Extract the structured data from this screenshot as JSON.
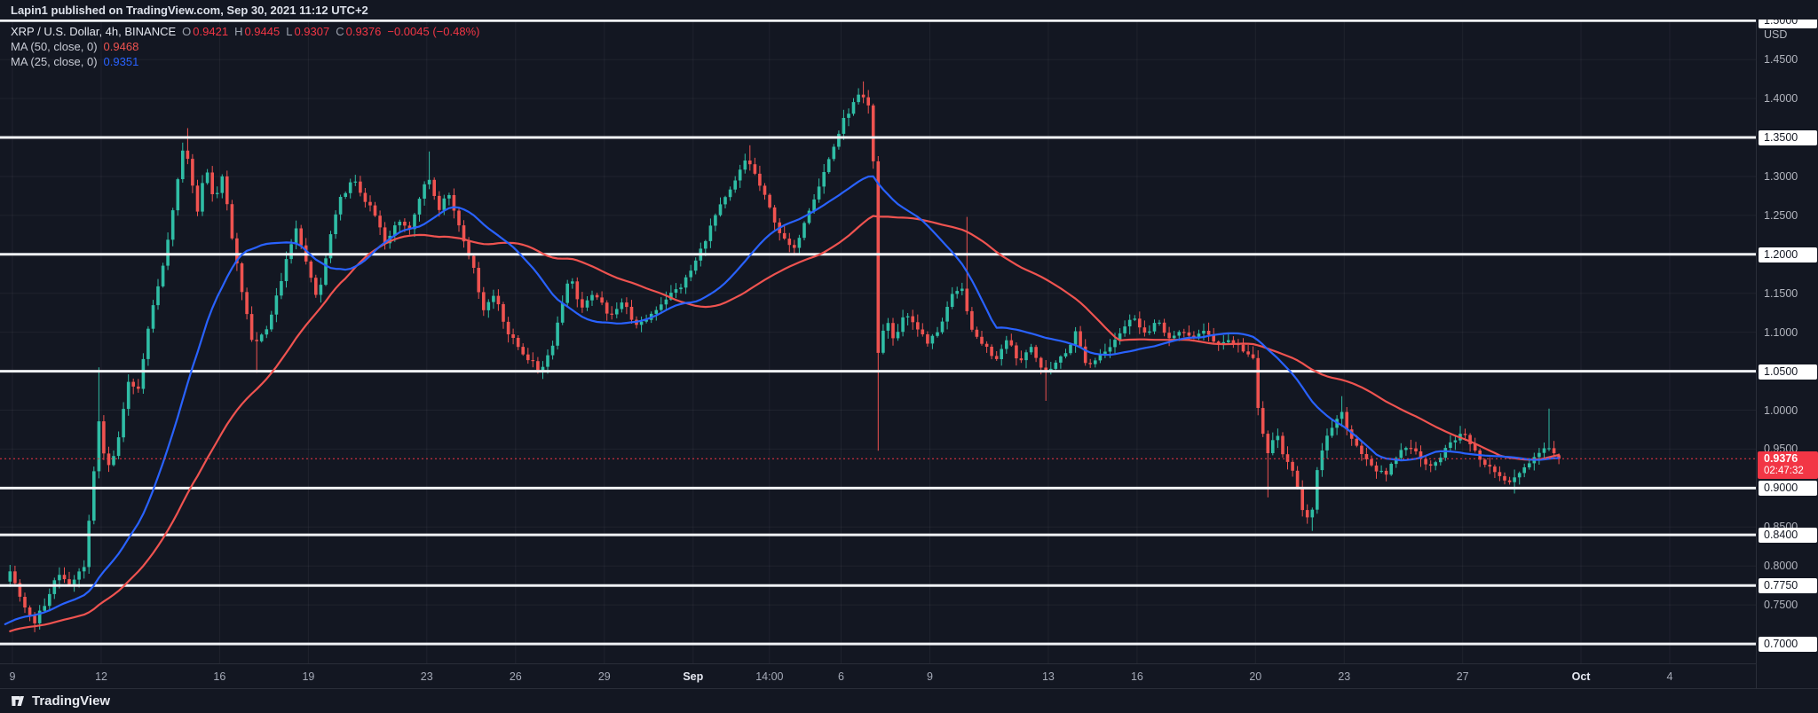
{
  "header": {
    "publisher": "Lapin1 published on TradingView.com, Sep 30, 2021 11:12 UTC+2"
  },
  "legend": {
    "symbol": "XRP / U.S. Dollar, 4h, BINANCE",
    "ohlc": [
      {
        "k": "O",
        "v": "0.9421"
      },
      {
        "k": "H",
        "v": "0.9445"
      },
      {
        "k": "L",
        "v": "0.9307"
      },
      {
        "k": "C",
        "v": "0.9376"
      }
    ],
    "change": "−0.0045 (−0.48%)"
  },
  "footer": {
    "brand": "TradingView"
  },
  "theme": {
    "bg": "#131722",
    "up": "#2fbda5",
    "down": "#ef5350",
    "accent": "#f23645",
    "grid": "rgba(255,255,255,0.05)",
    "level_line": "#f0f2f5",
    "axis_text": "#b2b5be"
  },
  "chart_data": {
    "type": "candlestick",
    "symbol": "XRP / U.S. Dollar",
    "interval": "4h",
    "exchange": "BINANCE",
    "last": {
      "open": 0.9421,
      "high": 0.9445,
      "low": 0.9307,
      "close": 0.9376,
      "change": -0.0045,
      "change_pct": -0.48
    },
    "badge": {
      "price_label": "0.9376",
      "countdown": "02:47:32"
    },
    "ma": [
      {
        "label": "MA (50, close, 0)",
        "period": 50,
        "value": "0.9468",
        "color": "#ef5350"
      },
      {
        "label": "MA (25, close, 0)",
        "period": 25,
        "value": "0.9351",
        "color": "#2962ff"
      }
    ],
    "support_lines": [
      1.5,
      1.35,
      1.2,
      1.05,
      0.9,
      0.84,
      0.775,
      0.7
    ],
    "y_axis": {
      "min": 0.675,
      "max": 1.5,
      "unit": "USD",
      "ticks": [
        {
          "label": "1.5000",
          "price": 1.5,
          "hl": true
        },
        {
          "label": "1.4500",
          "price": 1.45
        },
        {
          "label": "1.4000",
          "price": 1.4
        },
        {
          "label": "1.3500",
          "price": 1.35,
          "hl": true
        },
        {
          "label": "1.3000",
          "price": 1.3
        },
        {
          "label": "1.2500",
          "price": 1.25
        },
        {
          "label": "1.2000",
          "price": 1.2,
          "hl": true
        },
        {
          "label": "1.1500",
          "price": 1.15
        },
        {
          "label": "1.1000",
          "price": 1.1
        },
        {
          "label": "1.0500",
          "price": 1.05,
          "hl": true
        },
        {
          "label": "1.0000",
          "price": 1.0
        },
        {
          "label": "0.9500",
          "price": 0.95
        },
        {
          "label": "0.9000",
          "price": 0.9,
          "hl": true
        },
        {
          "label": "0.8500",
          "price": 0.85
        },
        {
          "label": "0.8400",
          "price": 0.84,
          "hl": true
        },
        {
          "label": "0.8000",
          "price": 0.8
        },
        {
          "label": "0.7750",
          "price": 0.775,
          "hl": true
        },
        {
          "label": "0.7500",
          "price": 0.75
        },
        {
          "label": "0.7000",
          "price": 0.7,
          "hl": true
        }
      ]
    },
    "x_axis": {
      "labels": [
        {
          "text": "9",
          "day": 0
        },
        {
          "text": "12",
          "day": 3
        },
        {
          "text": "16",
          "day": 7
        },
        {
          "text": "19",
          "day": 10
        },
        {
          "text": "23",
          "day": 14
        },
        {
          "text": "26",
          "day": 17
        },
        {
          "text": "29",
          "day": 20
        },
        {
          "text": "Sep",
          "day": 23,
          "major": true
        },
        {
          "text": "14:00",
          "day": 25.58
        },
        {
          "text": "6",
          "day": 28
        },
        {
          "text": "9",
          "day": 31
        },
        {
          "text": "13",
          "day": 35
        },
        {
          "text": "16",
          "day": 38
        },
        {
          "text": "20",
          "day": 42
        },
        {
          "text": "23",
          "day": 45
        },
        {
          "text": "27",
          "day": 49
        },
        {
          "text": "Oct",
          "day": 53,
          "major": true
        },
        {
          "text": "4",
          "day": 56
        }
      ]
    },
    "candles_per_day": 6,
    "range_days": [
      -0.3,
      58.8
    ],
    "price_path": [
      [
        -8.33,
        0.68
      ],
      [
        -5,
        0.72
      ],
      [
        -3,
        0.7
      ],
      [
        -1.5,
        0.73
      ],
      [
        -0.6,
        0.755
      ],
      [
        0,
        0.79
      ],
      [
        0.4,
        0.755
      ],
      [
        0.8,
        0.727
      ],
      [
        1.2,
        0.752
      ],
      [
        1.6,
        0.79
      ],
      [
        2.1,
        0.775
      ],
      [
        2.5,
        0.8
      ],
      [
        2.8,
        0.9
      ],
      [
        2.95,
        1.0
      ],
      [
        3.1,
        0.95
      ],
      [
        3.4,
        0.925
      ],
      [
        3.7,
        0.97
      ],
      [
        4.0,
        1.04
      ],
      [
        4.3,
        1.02
      ],
      [
        4.6,
        1.09
      ],
      [
        5.0,
        1.16
      ],
      [
        5.3,
        1.21
      ],
      [
        5.6,
        1.28
      ],
      [
        5.9,
        1.345
      ],
      [
        6.1,
        1.3
      ],
      [
        6.35,
        1.255
      ],
      [
        6.6,
        1.315
      ],
      [
        6.9,
        1.27
      ],
      [
        7.2,
        1.3
      ],
      [
        7.5,
        1.22
      ],
      [
        7.9,
        1.14
      ],
      [
        8.2,
        1.085
      ],
      [
        8.6,
        1.1
      ],
      [
        8.9,
        1.13
      ],
      [
        9.4,
        1.2
      ],
      [
        9.7,
        1.235
      ],
      [
        10.1,
        1.175
      ],
      [
        10.4,
        1.14
      ],
      [
        10.8,
        1.22
      ],
      [
        11.2,
        1.275
      ],
      [
        11.6,
        1.295
      ],
      [
        12.0,
        1.27
      ],
      [
        12.4,
        1.245
      ],
      [
        12.7,
        1.21
      ],
      [
        13.1,
        1.245
      ],
      [
        13.5,
        1.235
      ],
      [
        13.9,
        1.275
      ],
      [
        14.1,
        1.305
      ],
      [
        14.5,
        1.26
      ],
      [
        14.8,
        1.28
      ],
      [
        15.2,
        1.235
      ],
      [
        15.6,
        1.19
      ],
      [
        16.0,
        1.13
      ],
      [
        16.4,
        1.15
      ],
      [
        16.8,
        1.1
      ],
      [
        17.3,
        1.075
      ],
      [
        17.9,
        1.05
      ],
      [
        18.3,
        1.08
      ],
      [
        18.9,
        1.175
      ],
      [
        19.3,
        1.13
      ],
      [
        19.8,
        1.15
      ],
      [
        20.2,
        1.12
      ],
      [
        20.7,
        1.14
      ],
      [
        21.2,
        1.105
      ],
      [
        21.7,
        1.125
      ],
      [
        22.2,
        1.145
      ],
      [
        22.7,
        1.16
      ],
      [
        23.1,
        1.185
      ],
      [
        23.5,
        1.22
      ],
      [
        23.9,
        1.255
      ],
      [
        24.4,
        1.285
      ],
      [
        24.9,
        1.325
      ],
      [
        25.2,
        1.3
      ],
      [
        25.6,
        1.265
      ],
      [
        26.1,
        1.22
      ],
      [
        26.5,
        1.205
      ],
      [
        26.9,
        1.25
      ],
      [
        27.3,
        1.285
      ],
      [
        27.7,
        1.325
      ],
      [
        28.2,
        1.375
      ],
      [
        28.7,
        1.405
      ],
      [
        29.0,
        1.39
      ],
      [
        29.15,
        1.35
      ],
      [
        29.32,
        1.07
      ],
      [
        29.6,
        1.12
      ],
      [
        29.9,
        1.085
      ],
      [
        30.2,
        1.125
      ],
      [
        30.6,
        1.11
      ],
      [
        31.0,
        1.085
      ],
      [
        31.4,
        1.105
      ],
      [
        31.8,
        1.145
      ],
      [
        32.2,
        1.155
      ],
      [
        32.5,
        1.1
      ],
      [
        32.9,
        1.085
      ],
      [
        33.3,
        1.065
      ],
      [
        33.7,
        1.095
      ],
      [
        34.1,
        1.06
      ],
      [
        34.5,
        1.085
      ],
      [
        34.9,
        1.045
      ],
      [
        35.3,
        1.06
      ],
      [
        35.7,
        1.075
      ],
      [
        36.0,
        1.1
      ],
      [
        36.4,
        1.055
      ],
      [
        36.8,
        1.07
      ],
      [
        37.2,
        1.085
      ],
      [
        37.6,
        1.105
      ],
      [
        38.0,
        1.12
      ],
      [
        38.4,
        1.095
      ],
      [
        38.8,
        1.115
      ],
      [
        39.2,
        1.09
      ],
      [
        39.6,
        1.1
      ],
      [
        40.0,
        1.095
      ],
      [
        40.4,
        1.1
      ],
      [
        40.8,
        1.085
      ],
      [
        41.2,
        1.09
      ],
      [
        41.6,
        1.08
      ],
      [
        42.0,
        1.065
      ],
      [
        42.2,
        0.99
      ],
      [
        42.5,
        0.945
      ],
      [
        42.8,
        0.97
      ],
      [
        43.1,
        0.935
      ],
      [
        43.4,
        0.915
      ],
      [
        43.7,
        0.87
      ],
      [
        43.95,
        0.86
      ],
      [
        44.2,
        0.93
      ],
      [
        44.6,
        0.975
      ],
      [
        45.0,
        0.995
      ],
      [
        45.3,
        0.965
      ],
      [
        45.7,
        0.945
      ],
      [
        46.1,
        0.925
      ],
      [
        46.5,
        0.915
      ],
      [
        46.9,
        0.945
      ],
      [
        47.3,
        0.955
      ],
      [
        47.7,
        0.935
      ],
      [
        48.1,
        0.93
      ],
      [
        48.5,
        0.95
      ],
      [
        48.9,
        0.965
      ],
      [
        49.2,
        0.97
      ],
      [
        49.5,
        0.945
      ],
      [
        49.9,
        0.93
      ],
      [
        50.3,
        0.915
      ],
      [
        50.7,
        0.905
      ],
      [
        51.1,
        0.925
      ],
      [
        51.5,
        0.94
      ],
      [
        51.9,
        0.955
      ],
      [
        52.1,
        0.945
      ],
      [
        52.33,
        0.9376
      ]
    ],
    "wick_events": [
      {
        "day": 0.8,
        "low": 0.715
      },
      {
        "day": 2.95,
        "high": 1.055
      },
      {
        "day": 5.9,
        "high": 1.362
      },
      {
        "day": 8.2,
        "low": 1.048
      },
      {
        "day": 14.1,
        "high": 1.332
      },
      {
        "day": 17.9,
        "low": 1.04
      },
      {
        "day": 24.9,
        "high": 1.34
      },
      {
        "day": 28.7,
        "high": 1.422
      },
      {
        "day": 29.3,
        "low": 0.948
      },
      {
        "day": 32.2,
        "high": 1.248
      },
      {
        "day": 35.0,
        "low": 1.012
      },
      {
        "day": 42.5,
        "low": 0.888
      },
      {
        "day": 43.95,
        "low": 0.845
      },
      {
        "day": 45.0,
        "high": 1.018
      },
      {
        "day": 50.7,
        "low": 0.893
      },
      {
        "day": 51.9,
        "high": 1.002
      }
    ]
  }
}
